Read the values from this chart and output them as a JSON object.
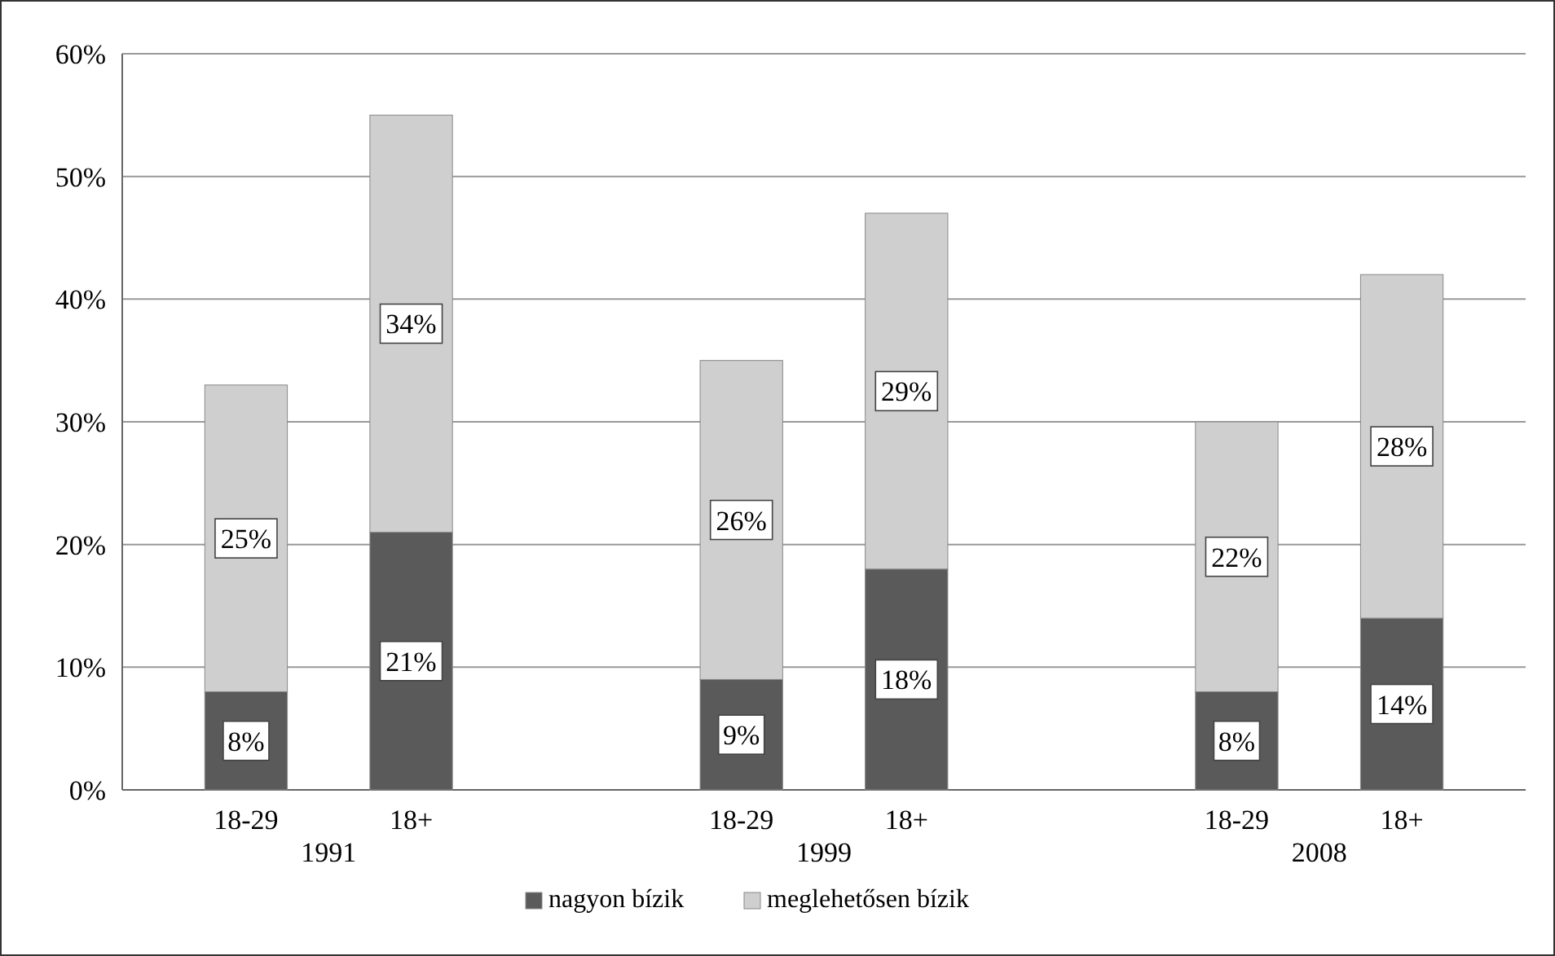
{
  "chart_data": {
    "type": "bar",
    "stacked": true,
    "categories": [
      "18-29",
      "18+",
      null,
      "18-29",
      "18+",
      null,
      "18-29",
      "18+"
    ],
    "series": [
      {
        "name": "nagyon bízik",
        "color": "#5a5a5a",
        "values": [
          8,
          21,
          null,
          9,
          18,
          null,
          8,
          14
        ],
        "value_labels": [
          "8%",
          "21%",
          null,
          "9%",
          "18%",
          null,
          "8%",
          "14%"
        ]
      },
      {
        "name": "meglehetősen bízik",
        "color": "#cfcfcf",
        "values": [
          25,
          34,
          null,
          26,
          29,
          null,
          22,
          28
        ],
        "value_labels": [
          "25%",
          "34%",
          null,
          "26%",
          "29%",
          null,
          "22%",
          "28%"
        ]
      }
    ],
    "ylim": [
      0,
      60
    ],
    "yticks": [
      {
        "value": 0,
        "label": "0%"
      },
      {
        "value": 10,
        "label": "10%"
      },
      {
        "value": 20,
        "label": "20%"
      },
      {
        "value": 30,
        "label": "30%"
      },
      {
        "value": 40,
        "label": "40%"
      },
      {
        "value": 50,
        "label": "50%"
      },
      {
        "value": 60,
        "label": "60%"
      }
    ],
    "grid": "y",
    "legend": "bottom",
    "annotations": [
      "1991",
      "1999",
      "2008"
    ]
  }
}
